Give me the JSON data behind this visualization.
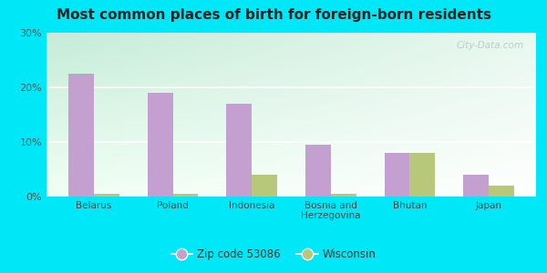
{
  "title": "Most common places of birth for foreign-born residents",
  "categories": [
    "Belarus",
    "Poland",
    "Indonesia",
    "Bosnia and\nHerzegovina",
    "Bhutan",
    "Japan"
  ],
  "zip_values": [
    22.5,
    19.0,
    17.0,
    9.5,
    8.0,
    4.0
  ],
  "wi_values": [
    0.5,
    0.5,
    4.0,
    0.5,
    8.0,
    2.0
  ],
  "zip_color": "#c4a0d0",
  "wi_color": "#b8c87a",
  "ylim": [
    0,
    30
  ],
  "yticks": [
    0,
    10,
    20,
    30
  ],
  "ytick_labels": [
    "0%",
    "10%",
    "20%",
    "30%"
  ],
  "legend_zip_label": "Zip code 53086",
  "legend_wi_label": "Wisconsin",
  "bg_outer": "#00e8f8",
  "watermark": "City-Data.com",
  "bar_width": 0.32,
  "bg_grad_topleft": "#c5ecd8",
  "bg_grad_topright": "#e8f8ef",
  "bg_grad_bottom": "#f5fff8"
}
